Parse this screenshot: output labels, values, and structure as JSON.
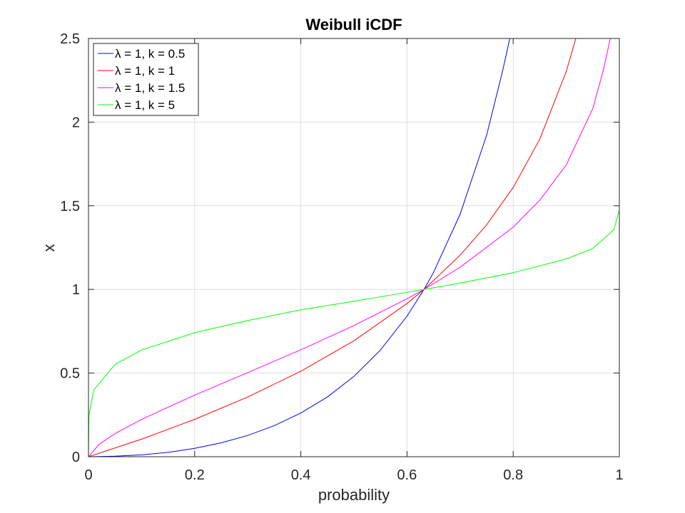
{
  "chart_data": {
    "type": "line",
    "title": "Weibull iCDF",
    "xlabel": "probability",
    "ylabel": "x",
    "xlim": [
      0,
      1
    ],
    "ylim": [
      0,
      2.5
    ],
    "xticks": [
      "0",
      "0.2",
      "0.4",
      "0.6",
      "0.8",
      "1"
    ],
    "yticks": [
      "0",
      "0.5",
      "1",
      "1.5",
      "2",
      "2.5"
    ],
    "grid": true,
    "legend_position": "top-left",
    "series": [
      {
        "name": "λ = 1, k = 0.5",
        "color": "#0000ff",
        "x": [
          0,
          0.05,
          0.1,
          0.15,
          0.2,
          0.25,
          0.3,
          0.35,
          0.4,
          0.45,
          0.5,
          0.55,
          0.6,
          0.632,
          0.65,
          0.7,
          0.75,
          0.78,
          0.795
        ],
        "values": [
          0,
          0.003,
          0.011,
          0.026,
          0.05,
          0.083,
          0.127,
          0.186,
          0.261,
          0.357,
          0.48,
          0.638,
          0.84,
          1.0,
          1.102,
          1.449,
          1.922,
          2.305,
          2.52
        ]
      },
      {
        "name": "λ = 1, k = 1",
        "color": "#ff0000",
        "x": [
          0,
          0.1,
          0.2,
          0.3,
          0.4,
          0.5,
          0.6,
          0.632,
          0.7,
          0.75,
          0.8,
          0.85,
          0.9,
          0.918
        ],
        "values": [
          0,
          0.105,
          0.223,
          0.357,
          0.511,
          0.693,
          0.916,
          1.0,
          1.204,
          1.386,
          1.609,
          1.897,
          2.303,
          2.5
        ]
      },
      {
        "name": "λ = 1, k = 1.5",
        "color": "#ff00ff",
        "x": [
          0,
          0.02,
          0.05,
          0.1,
          0.2,
          0.3,
          0.4,
          0.5,
          0.6,
          0.632,
          0.7,
          0.8,
          0.85,
          0.9,
          0.95,
          0.97,
          0.983
        ],
        "values": [
          0,
          0.074,
          0.138,
          0.223,
          0.368,
          0.503,
          0.639,
          0.784,
          0.944,
          1.0,
          1.132,
          1.372,
          1.533,
          1.744,
          2.081,
          2.313,
          2.5
        ]
      },
      {
        "name": "λ = 1, k = 5",
        "color": "#00ff00",
        "x": [
          0,
          0.001,
          0.01,
          0.05,
          0.1,
          0.2,
          0.3,
          0.4,
          0.5,
          0.6,
          0.632,
          0.7,
          0.8,
          0.9,
          0.95,
          0.99,
          0.999
        ],
        "values": [
          0,
          0.251,
          0.399,
          0.552,
          0.638,
          0.741,
          0.814,
          0.878,
          0.929,
          0.983,
          1.0,
          1.038,
          1.1,
          1.182,
          1.245,
          1.357,
          1.467
        ]
      }
    ]
  }
}
